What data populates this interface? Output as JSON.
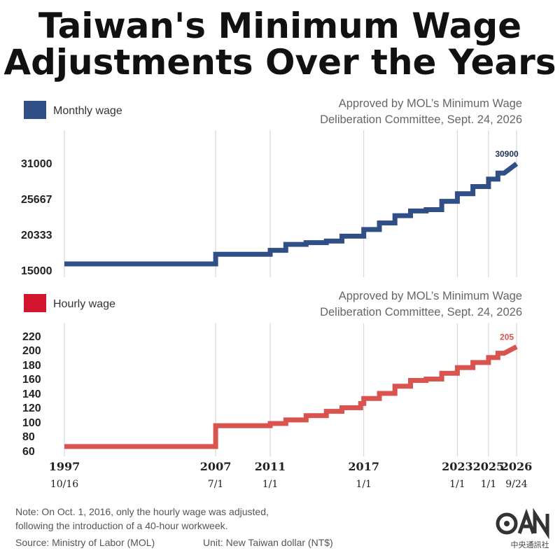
{
  "header": {
    "title_line1": "Taiwan's Minimum Wage",
    "title_line2": "Adjustments Over the Years"
  },
  "colors": {
    "monthly": "#2f4f86",
    "hourly": "#d9534f",
    "monthly_legend": "#2f4f86",
    "hourly_legend": "#d2142d"
  },
  "chart_data": [
    {
      "type": "line",
      "title": "",
      "legend": "Monthly wage",
      "annotation": "Approved by MOL’s Minimum Wage Deliberation Committee, Sept. 24, 2026",
      "annotation_line1": "Approved by MOL’s Minimum Wage",
      "annotation_line2": "Deliberation Committee, Sept. 24, 2026",
      "yticks": [
        15000,
        20333,
        25667,
        31000
      ],
      "ylim": [
        15000,
        31000
      ],
      "end_label": "30900",
      "xlim": [
        1997.8,
        2026.8
      ],
      "series": [
        {
          "values": [
            [
              1997.8,
              15840
            ],
            [
              2007.5,
              15840
            ],
            [
              2007.5,
              17280
            ],
            [
              2011.0,
              17280
            ],
            [
              2011.0,
              17880
            ],
            [
              2012.0,
              17880
            ],
            [
              2012.0,
              18780
            ],
            [
              2013.3,
              18780
            ],
            [
              2013.3,
              19047
            ],
            [
              2014.6,
              19047
            ],
            [
              2014.6,
              19273
            ],
            [
              2015.6,
              19273
            ],
            [
              2015.6,
              20008
            ],
            [
              2017.0,
              20008
            ],
            [
              2017.0,
              21009
            ],
            [
              2018.0,
              21009
            ],
            [
              2018.0,
              22000
            ],
            [
              2019.0,
              22000
            ],
            [
              2019.0,
              23100
            ],
            [
              2020.0,
              23100
            ],
            [
              2020.0,
              23800
            ],
            [
              2021.0,
              23800
            ],
            [
              2021.0,
              24000
            ],
            [
              2022.0,
              24000
            ],
            [
              2022.0,
              25250
            ],
            [
              2023.0,
              25250
            ],
            [
              2023.0,
              26400
            ],
            [
              2024.0,
              26400
            ],
            [
              2024.0,
              27470
            ],
            [
              2025.0,
              27470
            ],
            [
              2025.0,
              28590
            ],
            [
              2025.6,
              28590
            ],
            [
              2025.6,
              29500
            ],
            [
              2026.0,
              29500
            ],
            [
              2026.0,
              29500
            ],
            [
              2026.8,
              30900
            ]
          ]
        }
      ]
    },
    {
      "type": "line",
      "title": "",
      "legend": "Hourly wage",
      "annotation": "Approved by MOL’s Minimum Wage Deliberation Committee, Sept. 24, 2026",
      "annotation_line1": "Approved by MOL’s Minimum Wage",
      "annotation_line2": "Deliberation Committee, Sept. 24, 2026",
      "yticks": [
        60,
        80,
        100,
        120,
        140,
        160,
        180,
        200,
        220
      ],
      "ylim": [
        60,
        220
      ],
      "end_label": "205",
      "xlim": [
        1997.8,
        2026.8
      ],
      "series": [
        {
          "values": [
            [
              1997.8,
              66
            ],
            [
              2007.5,
              66
            ],
            [
              2007.5,
              95
            ],
            [
              2011.0,
              95
            ],
            [
              2011.0,
              98
            ],
            [
              2012.0,
              98
            ],
            [
              2012.0,
              103
            ],
            [
              2013.3,
              103
            ],
            [
              2013.3,
              109
            ],
            [
              2014.6,
              109
            ],
            [
              2014.6,
              115
            ],
            [
              2015.6,
              115
            ],
            [
              2015.6,
              120
            ],
            [
              2016.8,
              120
            ],
            [
              2016.8,
              126
            ],
            [
              2017.0,
              126
            ],
            [
              2017.0,
              133
            ],
            [
              2018.0,
              133
            ],
            [
              2018.0,
              140
            ],
            [
              2019.0,
              140
            ],
            [
              2019.0,
              150
            ],
            [
              2020.0,
              150
            ],
            [
              2020.0,
              158
            ],
            [
              2021.0,
              158
            ],
            [
              2021.0,
              160
            ],
            [
              2022.0,
              160
            ],
            [
              2022.0,
              168
            ],
            [
              2023.0,
              168
            ],
            [
              2023.0,
              176
            ],
            [
              2024.0,
              176
            ],
            [
              2024.0,
              183
            ],
            [
              2025.0,
              183
            ],
            [
              2025.0,
              190
            ],
            [
              2025.6,
              190
            ],
            [
              2025.6,
              196
            ],
            [
              2026.0,
              196
            ],
            [
              2026.8,
              205
            ]
          ]
        }
      ]
    }
  ],
  "x_axis": {
    "ticks": [
      {
        "x": 1997.8,
        "year": "1997",
        "date": "10/16"
      },
      {
        "x": 2007.5,
        "year": "2007",
        "date": "7/1"
      },
      {
        "x": 2011.0,
        "year": "2011",
        "date": "1/1"
      },
      {
        "x": 2017.0,
        "year": "2017",
        "date": "1/1"
      },
      {
        "x": 2023.0,
        "year": "2023",
        "date": "1/1"
      },
      {
        "x": 2025.0,
        "year": "2025",
        "date": "1/1"
      },
      {
        "x": 2026.8,
        "year": "2026",
        "date": "9/24"
      }
    ]
  },
  "footer": {
    "note_line1": "Note: On Oct. 1, 2016, only the hourly wage was adjusted,",
    "note_line2": "following the introduction of a 40-hour workweek.",
    "source": "Source: Ministry of Labor (MOL)",
    "unit": "Unit: New Taiwan dollar (NT$)",
    "logo_text": "中央通訊社"
  }
}
